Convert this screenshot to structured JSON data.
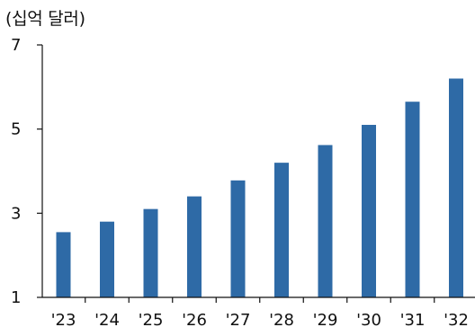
{
  "chart_data": {
    "type": "bar",
    "unit_label": "(십억 달러)",
    "categories": [
      "'23",
      "'24",
      "'25",
      "'26",
      "'27",
      "'28",
      "'29",
      "'30",
      "'31",
      "'32"
    ],
    "values": [
      2.55,
      2.8,
      3.1,
      3.4,
      3.78,
      4.2,
      4.62,
      5.1,
      5.65,
      6.2
    ],
    "yticks": [
      1,
      3,
      5,
      7
    ],
    "ylim": [
      1,
      7
    ],
    "bar_color": "#2e6aa6",
    "axis_color": "#111111"
  }
}
